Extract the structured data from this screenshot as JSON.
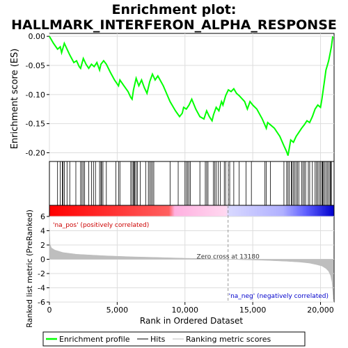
{
  "chart_data": {
    "type": "line",
    "title_line1": "Enrichment plot:",
    "title_line2": "HALLMARK_INTERFERON_ALPHA_RESPONSE",
    "es_ylabel": "Enrichment score (ES)",
    "metric_ylabel": "Ranked list metric (PreRanked)",
    "xlabel": "Rank in Ordered Dataset",
    "x_ticks": [
      0,
      5000,
      10000,
      15000,
      20000
    ],
    "x_tick_labels": [
      "0",
      "5,000",
      "10,000",
      "15,000",
      "20,000"
    ],
    "xlim": [
      0,
      21000
    ],
    "es_ylim": [
      -0.215,
      0.005
    ],
    "es_ticks": [
      0.0,
      -0.05,
      -0.1,
      -0.15,
      -0.2
    ],
    "es_tick_labels": [
      "0.00",
      "-0.05",
      "-0.10",
      "-0.15",
      "-0.20"
    ],
    "metric_ylim": [
      -6,
      6
    ],
    "metric_ticks": [
      6,
      4,
      2,
      0,
      -2,
      -4,
      -6
    ],
    "metric_tick_labels": [
      "6",
      "4",
      "2",
      "0",
      "-2",
      "-4",
      "-6"
    ],
    "zero_cross_rank": 13180,
    "zero_cross_label": "Zero cross at 13180",
    "pos_label": "'na_pos' (positively correlated)",
    "neg_label": "'na_neg' (negatively correlated)",
    "series": [
      {
        "name": "Enrichment profile",
        "color": "#00ff00",
        "x": [
          0,
          300,
          600,
          800,
          900,
          1100,
          1300,
          1500,
          1800,
          2000,
          2200,
          2300,
          2500,
          2700,
          2900,
          3100,
          3300,
          3500,
          3700,
          3800,
          4000,
          4200,
          4500,
          4800,
          5100,
          5200,
          5500,
          5800,
          6000,
          6100,
          6200,
          6300,
          6400,
          6600,
          6800,
          7000,
          7200,
          7400,
          7600,
          7800,
          8000,
          8400,
          8900,
          9300,
          9600,
          9800,
          9900,
          10100,
          10300,
          10500,
          10800,
          11100,
          11400,
          11600,
          11800,
          12000,
          12100,
          12300,
          12500,
          12700,
          12800,
          13000,
          13200,
          13400,
          13600,
          13800,
          14000,
          14400,
          14600,
          14800,
          15000,
          15300,
          15700,
          16000,
          16100,
          16300,
          16600,
          17000,
          17300,
          17500,
          17600,
          17800,
          18000,
          18200,
          18400,
          18600,
          18800,
          19000,
          19200,
          19400,
          19600,
          19800,
          20000,
          20100,
          20200,
          20300,
          20400,
          20500,
          20600,
          20700,
          20800,
          20900
        ],
        "y": [
          0.0,
          -0.012,
          -0.022,
          -0.018,
          -0.028,
          -0.012,
          -0.022,
          -0.032,
          -0.045,
          -0.042,
          -0.052,
          -0.055,
          -0.038,
          -0.048,
          -0.055,
          -0.048,
          -0.052,
          -0.045,
          -0.058,
          -0.048,
          -0.042,
          -0.048,
          -0.062,
          -0.075,
          -0.085,
          -0.075,
          -0.085,
          -0.095,
          -0.105,
          -0.108,
          -0.092,
          -0.082,
          -0.072,
          -0.085,
          -0.075,
          -0.088,
          -0.098,
          -0.078,
          -0.065,
          -0.075,
          -0.068,
          -0.085,
          -0.112,
          -0.128,
          -0.138,
          -0.132,
          -0.122,
          -0.125,
          -0.118,
          -0.108,
          -0.125,
          -0.138,
          -0.142,
          -0.128,
          -0.138,
          -0.145,
          -0.135,
          -0.122,
          -0.128,
          -0.112,
          -0.118,
          -0.102,
          -0.092,
          -0.095,
          -0.09,
          -0.098,
          -0.102,
          -0.112,
          -0.125,
          -0.112,
          -0.118,
          -0.125,
          -0.142,
          -0.158,
          -0.148,
          -0.152,
          -0.158,
          -0.172,
          -0.188,
          -0.198,
          -0.205,
          -0.178,
          -0.182,
          -0.172,
          -0.165,
          -0.158,
          -0.152,
          -0.145,
          -0.148,
          -0.138,
          -0.125,
          -0.118,
          -0.122,
          -0.108,
          -0.092,
          -0.075,
          -0.058,
          -0.05,
          -0.042,
          -0.03,
          -0.018,
          0.0
        ]
      },
      {
        "name": "Hits",
        "color": "#000000",
        "positions": [
          600,
          800,
          950,
          1000,
          1100,
          1300,
          1500,
          1950,
          2300,
          2400,
          2500,
          2600,
          2900,
          3100,
          3250,
          3400,
          3700,
          3800,
          3850,
          3950,
          4200,
          4900,
          5100,
          5200,
          6000,
          6100,
          6200,
          6250,
          6300,
          6400,
          6500,
          6700,
          7100,
          7300,
          7400,
          7500,
          7600,
          7700,
          8900,
          9500,
          10000,
          10100,
          10200,
          10300,
          10400,
          11100,
          11500,
          11600,
          11700,
          12100,
          12200,
          12300,
          12450,
          12600,
          12900,
          13000,
          13200,
          13300,
          13600,
          14000,
          14500,
          14900,
          15900,
          16000,
          16300,
          17300,
          17500,
          17600,
          17700,
          17850,
          17900,
          18000,
          18100,
          18200,
          18300,
          18400,
          18600,
          18700,
          18800,
          18900,
          19100,
          19200,
          19400,
          19600,
          19700,
          19800,
          19900,
          20000,
          20100,
          20150,
          20200,
          20300,
          20400,
          20500,
          20600,
          20700,
          20750,
          20800
        ]
      },
      {
        "name": "Ranking metric scores",
        "color": "#bebebe",
        "x": [
          0,
          50,
          150,
          400,
          1000,
          2000,
          4000,
          6000,
          8000,
          10000,
          12000,
          13180,
          14500,
          16000,
          17500,
          18500,
          19200,
          19700,
          20100,
          20400,
          20600,
          20750,
          20850,
          20900,
          20950
        ],
        "y": [
          4.3,
          2.1,
          1.6,
          1.3,
          0.95,
          0.7,
          0.5,
          0.35,
          0.25,
          0.15,
          0.08,
          0.0,
          -0.08,
          -0.16,
          -0.28,
          -0.4,
          -0.55,
          -0.75,
          -0.95,
          -1.3,
          -1.7,
          -2.3,
          -3.2,
          -4.5,
          -5.6
        ]
      }
    ],
    "legend": [
      "Enrichment profile",
      "Hits",
      "Ranking metric scores"
    ],
    "legend_position": "bottom"
  }
}
